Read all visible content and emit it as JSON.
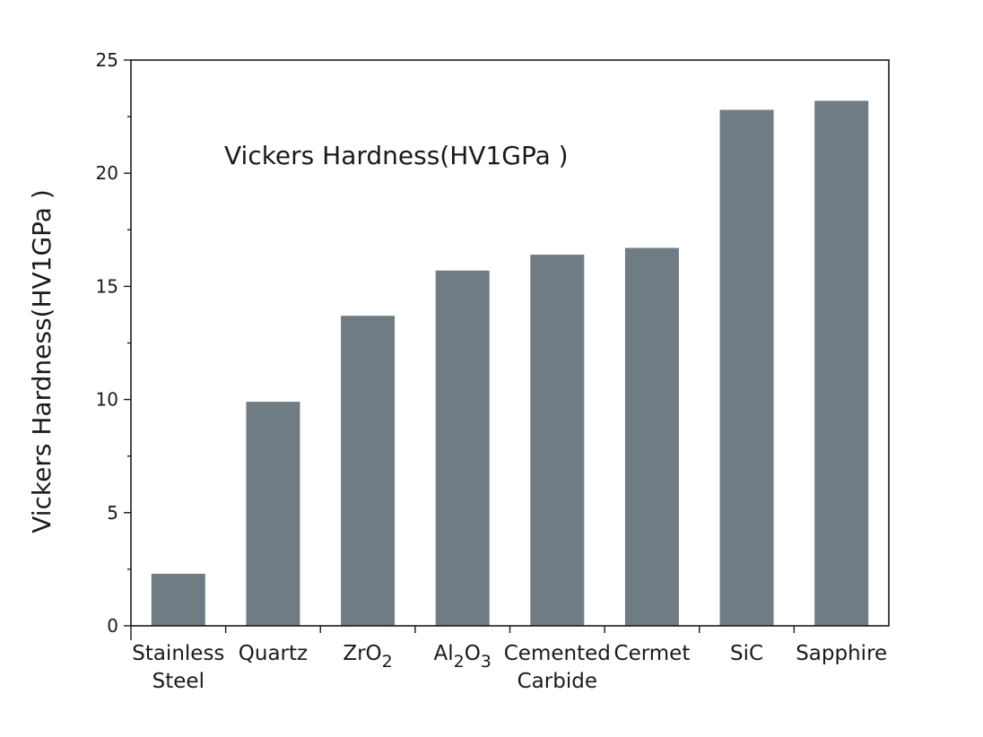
{
  "chart_data": {
    "type": "bar",
    "title": "Vickers Hardness(HV1GPa )",
    "ylabel": "Vickers Hardness(HV1GPa )",
    "xlabel": "",
    "ylim": [
      0,
      25
    ],
    "yticks": [
      "0",
      "5",
      "10",
      "15",
      "20",
      "25"
    ],
    "grid": false,
    "categories": [
      {
        "lines": [
          {
            "parts": [
              {
                "t": "Stainless"
              }
            ]
          },
          {
            "parts": [
              {
                "t": "Steel"
              }
            ]
          }
        ]
      },
      {
        "lines": [
          {
            "parts": [
              {
                "t": "Quartz"
              }
            ]
          }
        ]
      },
      {
        "lines": [
          {
            "parts": [
              {
                "t": "ZrO"
              },
              {
                "t": "2",
                "sub": true
              }
            ]
          }
        ]
      },
      {
        "lines": [
          {
            "parts": [
              {
                "t": "Al"
              },
              {
                "t": "2",
                "sub": true
              },
              {
                "t": "O"
              },
              {
                "t": "3",
                "sub": true
              }
            ]
          }
        ]
      },
      {
        "lines": [
          {
            "parts": [
              {
                "t": "Cemented"
              }
            ]
          },
          {
            "parts": [
              {
                "t": "Carbide"
              }
            ]
          }
        ]
      },
      {
        "lines": [
          {
            "parts": [
              {
                "t": "Cermet"
              }
            ]
          }
        ]
      },
      {
        "lines": [
          {
            "parts": [
              {
                "t": "SiC"
              }
            ]
          }
        ]
      },
      {
        "lines": [
          {
            "parts": [
              {
                "t": "Sapphire"
              }
            ]
          }
        ]
      }
    ],
    "values": [
      2.3,
      9.9,
      13.7,
      15.7,
      16.4,
      16.7,
      22.8,
      23.2
    ],
    "bar_color": "#6f7c83",
    "axis_color": "#1a1a1a"
  }
}
